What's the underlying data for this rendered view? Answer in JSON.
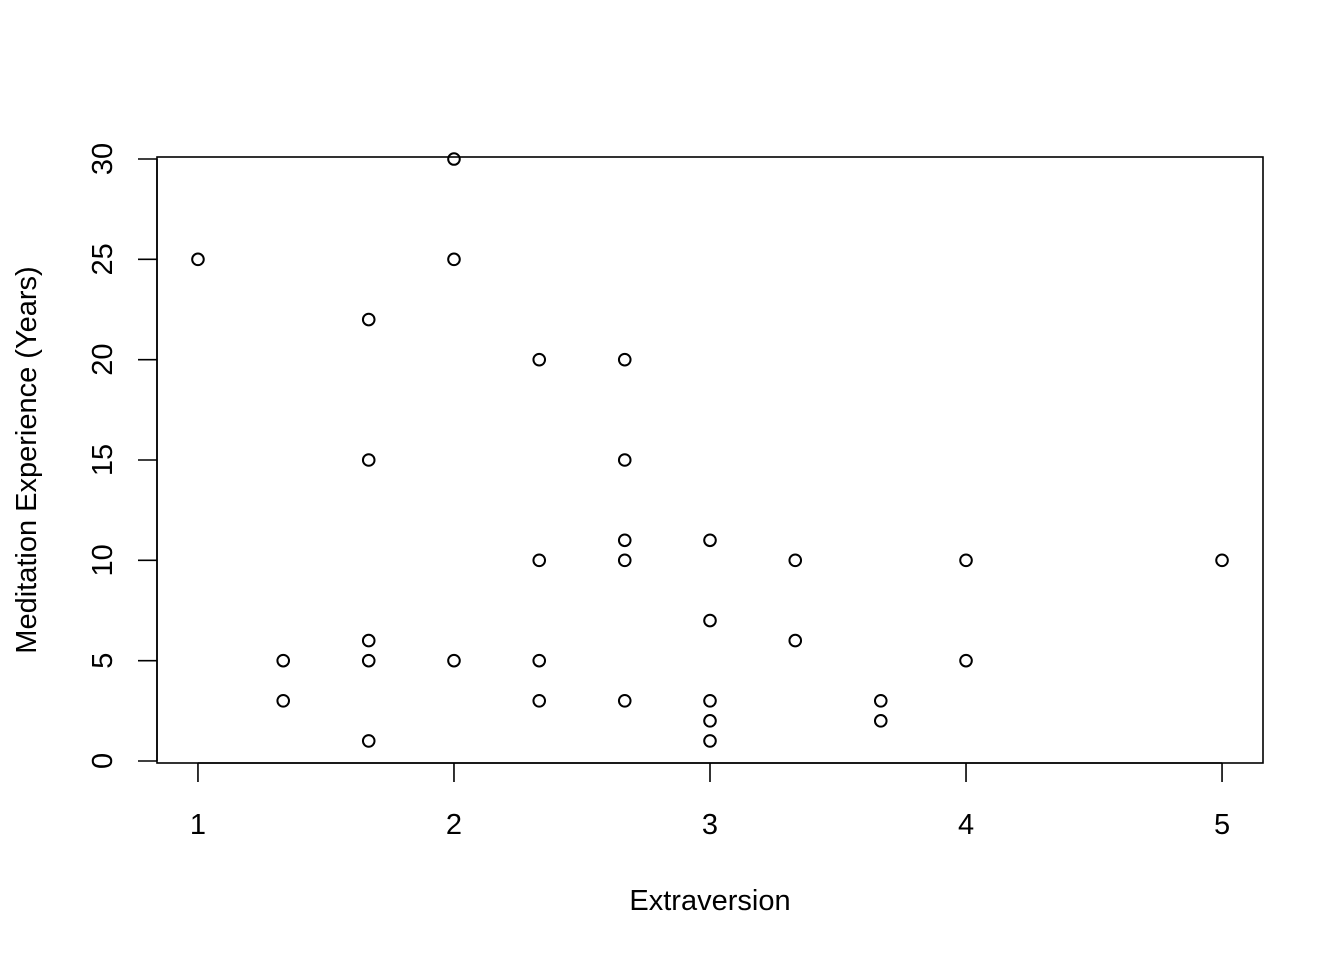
{
  "chart_data": {
    "type": "scatter",
    "title": "",
    "xlabel": "Extraversion",
    "ylabel": "Meditation Experience (Years)",
    "xlim": [
      0.84,
      5.16
    ],
    "ylim": [
      -0.1,
      30.1
    ],
    "xticks": [
      1,
      2,
      3,
      4,
      5
    ],
    "yticks": [
      0,
      5,
      10,
      15,
      20,
      25,
      30
    ],
    "grid": false,
    "legend": "none",
    "marker": "open-circle",
    "points": [
      {
        "x": 1.0,
        "y": 25
      },
      {
        "x": 1.333,
        "y": 5
      },
      {
        "x": 1.333,
        "y": 3
      },
      {
        "x": 1.667,
        "y": 22
      },
      {
        "x": 1.667,
        "y": 15
      },
      {
        "x": 1.667,
        "y": 6
      },
      {
        "x": 1.667,
        "y": 5
      },
      {
        "x": 1.667,
        "y": 1
      },
      {
        "x": 2.0,
        "y": 30
      },
      {
        "x": 2.0,
        "y": 25
      },
      {
        "x": 2.0,
        "y": 5
      },
      {
        "x": 2.333,
        "y": 20
      },
      {
        "x": 2.333,
        "y": 10
      },
      {
        "x": 2.333,
        "y": 5
      },
      {
        "x": 2.333,
        "y": 3
      },
      {
        "x": 2.667,
        "y": 20
      },
      {
        "x": 2.667,
        "y": 15
      },
      {
        "x": 2.667,
        "y": 11
      },
      {
        "x": 2.667,
        "y": 10
      },
      {
        "x": 2.667,
        "y": 3
      },
      {
        "x": 3.0,
        "y": 11
      },
      {
        "x": 3.0,
        "y": 7
      },
      {
        "x": 3.0,
        "y": 3
      },
      {
        "x": 3.0,
        "y": 2
      },
      {
        "x": 3.0,
        "y": 1
      },
      {
        "x": 3.333,
        "y": 10
      },
      {
        "x": 3.333,
        "y": 6
      },
      {
        "x": 3.667,
        "y": 3
      },
      {
        "x": 3.667,
        "y": 2
      },
      {
        "x": 4.0,
        "y": 10
      },
      {
        "x": 4.0,
        "y": 5
      },
      {
        "x": 5.0,
        "y": 10
      }
    ]
  }
}
